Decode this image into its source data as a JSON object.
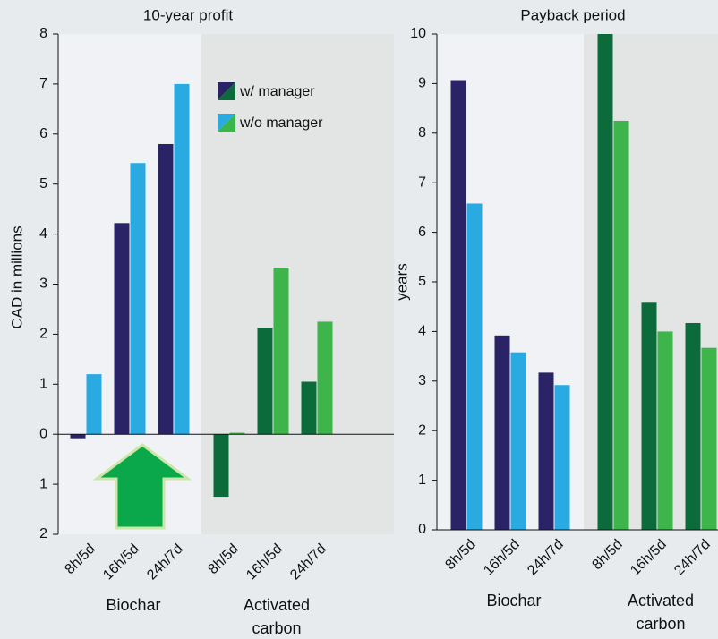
{
  "chart_data": [
    {
      "type": "bar",
      "title": "10-year profit",
      "y_label": "CAD in millions",
      "groups": [
        {
          "name": "Biochar",
          "categories": [
            "8h/5d",
            "16h/5d",
            "24h/7d"
          ],
          "background": "#f1f2f5"
        },
        {
          "name": "Activated carbon",
          "categories": [
            "8h/5d",
            "16h/5d",
            "24h/7d"
          ],
          "background": "#e3e4e4"
        }
      ],
      "series": [
        {
          "name": "w/ manager",
          "colors": [
            "#2a2466",
            "#0c6b3a"
          ],
          "values": [
            -0.08,
            4.22,
            5.8,
            -1.25,
            2.13,
            1.05
          ]
        },
        {
          "name": "w/o manager",
          "colors": [
            "#29abe2",
            "#3db54a"
          ],
          "values": [
            1.2,
            5.42,
            7.0,
            0.03,
            3.33,
            2.25
          ]
        }
      ],
      "ylim": [
        -2,
        8
      ],
      "yticks": [
        {
          "value": -2,
          "label": "2"
        },
        {
          "value": -1,
          "label": "1"
        },
        0,
        1,
        2,
        3,
        4,
        5,
        6,
        7,
        8
      ],
      "negative_tick_color": "#e8231f",
      "legend": "upper right"
    },
    {
      "type": "bar",
      "title": "Payback period",
      "y_label": "years",
      "groups": [
        {
          "name": "Biochar",
          "categories": [
            "8h/5d",
            "16h/5d",
            "24h/7d"
          ],
          "background": "#f1f2f5"
        },
        {
          "name": "Activated carbon",
          "categories": [
            "8h/5d",
            "16h/5d",
            "24h/7d"
          ],
          "background": "#e3e4e4"
        }
      ],
      "series": [
        {
          "colors": [
            "#2a2466",
            "#0c6b3a"
          ],
          "values": [
            9.07,
            3.92,
            3.17,
            10.0,
            4.58,
            4.17
          ]
        },
        {
          "colors": [
            "#29abe2",
            "#3db54a"
          ],
          "values": [
            6.58,
            3.58,
            2.92,
            8.25,
            4.0,
            3.67
          ]
        }
      ],
      "ylim": [
        0,
        10
      ],
      "yticks": [
        0,
        1,
        2,
        3,
        4,
        5,
        6,
        7,
        8,
        9,
        10
      ]
    }
  ]
}
